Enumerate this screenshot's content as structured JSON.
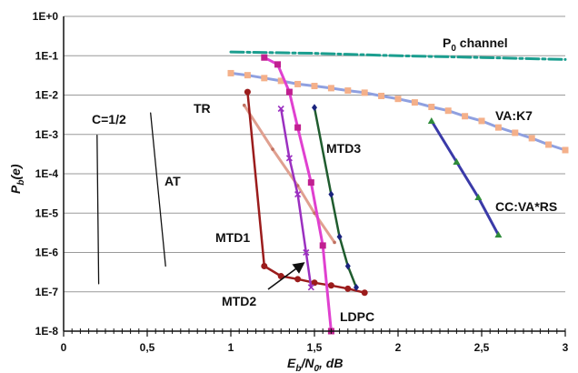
{
  "chart_data": {
    "type": "line",
    "xlabel": "E_b/N_0, dB",
    "ylabel": "P_b(e)",
    "xlim": [
      0,
      3
    ],
    "ylim": [
      1e-08,
      1
    ],
    "y_scale": "log",
    "grid": "horizontal",
    "x_ticks": [
      {
        "value": 0,
        "label": "0"
      },
      {
        "value": 0.5,
        "label": "0,5"
      },
      {
        "value": 1,
        "label": "1"
      },
      {
        "value": 1.5,
        "label": "1,5"
      },
      {
        "value": 2,
        "label": "2"
      },
      {
        "value": 2.5,
        "label": "2,5"
      },
      {
        "value": 3,
        "label": "3"
      }
    ],
    "y_ticks": [
      {
        "value": 1,
        "label": "1E+0"
      },
      {
        "value": 0.1,
        "label": "1E-1"
      },
      {
        "value": 0.01,
        "label": "1E-2"
      },
      {
        "value": 0.001,
        "label": "1E-3"
      },
      {
        "value": 0.0001,
        "label": "1E-4"
      },
      {
        "value": 1e-05,
        "label": "1E-5"
      },
      {
        "value": 1e-06,
        "label": "1E-6"
      },
      {
        "value": 1e-07,
        "label": "1E-7"
      },
      {
        "value": 1e-08,
        "label": "1E-8"
      }
    ],
    "series": [
      {
        "name": "C=1/2",
        "color": "#111111",
        "marker": "none",
        "width": 1.3,
        "x": [
          0.2,
          0.21
        ],
        "y": [
          0.00095,
          1.6e-07
        ]
      },
      {
        "name": "AT",
        "color": "#111111",
        "marker": "none",
        "width": 1.3,
        "x": [
          0.52,
          0.61
        ],
        "y": [
          0.0035,
          4.5e-07
        ]
      },
      {
        "name": "P_0 channel",
        "color": "#1b9e8f",
        "marker": "none",
        "width": 3,
        "dash": "14,4,3,4",
        "x": [
          1.0,
          1.5,
          2.0,
          2.5,
          3.0
        ],
        "y": [
          0.125,
          0.115,
          0.1,
          0.09,
          0.08
        ]
      },
      {
        "name": "VA:K7",
        "color": "#8fa0e0",
        "marker": "square",
        "markerColor": "#f4b08a",
        "width": 3,
        "x": [
          1.0,
          1.1,
          1.2,
          1.3,
          1.4,
          1.5,
          1.6,
          1.7,
          1.8,
          1.9,
          2.0,
          2.1,
          2.2,
          2.3,
          2.4,
          2.5,
          2.6,
          2.7,
          2.8,
          2.9,
          3.0
        ],
        "y": [
          0.036,
          0.032,
          0.027,
          0.023,
          0.019,
          0.017,
          0.015,
          0.013,
          0.0115,
          0.0095,
          0.008,
          0.0065,
          0.005,
          0.004,
          0.0029,
          0.0022,
          0.0015,
          0.0011,
          0.0008,
          0.00055,
          0.0004
        ]
      },
      {
        "name": "CC:VA*RS",
        "color": "#3a3aa8",
        "marker": "triangle",
        "markerColor": "#2e8b3a",
        "width": 3,
        "x": [
          2.2,
          2.35,
          2.48,
          2.6
        ],
        "y": [
          0.0022,
          0.0002,
          2.5e-05,
          2.8e-06
        ]
      },
      {
        "name": "TR",
        "color": "#e0a090",
        "marker": "small",
        "markerColor": "#c07060",
        "width": 3,
        "x": [
          1.08,
          1.25,
          1.4,
          1.5,
          1.62
        ],
        "y": [
          0.0055,
          0.00042,
          5e-05,
          1e-05,
          1.8e-06
        ]
      },
      {
        "name": "MTD1",
        "color": "#9b1c1c",
        "marker": "circle",
        "markerColor": "#9b1c1c",
        "width": 2.5,
        "x": [
          1.1,
          1.2,
          1.3,
          1.4,
          1.5,
          1.6,
          1.7,
          1.8
        ],
        "y": [
          0.012,
          4.5e-07,
          2.5e-07,
          2.1e-07,
          1.7e-07,
          1.45e-07,
          1.2e-07,
          9.5e-08
        ]
      },
      {
        "name": "MTD2",
        "color": "#9b30c0",
        "marker": "cross",
        "markerColor": "#9b30c0",
        "width": 2.5,
        "x": [
          1.3,
          1.35,
          1.4,
          1.45,
          1.48
        ],
        "y": [
          0.0045,
          0.00025,
          3e-05,
          1e-06,
          1.3e-07
        ]
      },
      {
        "name": "MTD3",
        "color": "#1f5c2e",
        "marker": "diamond",
        "markerColor": "#1a237e",
        "width": 2.5,
        "x": [
          1.5,
          1.6,
          1.65,
          1.7,
          1.75
        ],
        "y": [
          0.0048,
          3e-05,
          2.5e-06,
          4.5e-07,
          1.3e-07
        ]
      },
      {
        "name": "LDPC",
        "color": "#e040d0",
        "marker": "square",
        "markerColor": "#c02090",
        "width": 3,
        "x": [
          1.2,
          1.28,
          1.35,
          1.4,
          1.48,
          1.55,
          1.6
        ],
        "y": [
          0.09,
          0.06,
          0.012,
          0.0015,
          6e-05,
          1.5e-06,
          1e-08
        ]
      }
    ],
    "annotations": [
      {
        "text": "P_0 channel"
      },
      {
        "text": "VA:K7"
      },
      {
        "text": "CC:VA*RS"
      },
      {
        "text": "TR"
      },
      {
        "text": "C=1/2"
      },
      {
        "text": "AT"
      },
      {
        "text": "MTD3"
      },
      {
        "text": "MTD1"
      },
      {
        "text": "MTD2"
      },
      {
        "text": "LDPC"
      }
    ]
  }
}
